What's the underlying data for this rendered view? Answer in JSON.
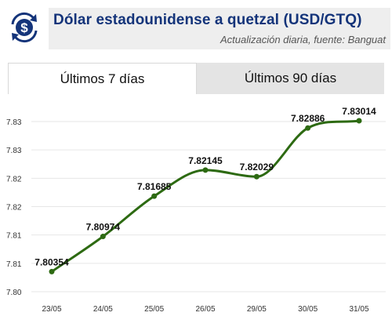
{
  "header": {
    "title": "Dólar estadounidense a quetzal (USD/GTQ)",
    "subtitle": "Actualización diaria, fuente: Banguat",
    "logo_icon": "dollar-exchange-icon",
    "logo_symbol": "$",
    "title_color": "#14347a",
    "logo_color": "#14347a"
  },
  "tabs": [
    {
      "label": "Últimos 7 días",
      "active": true
    },
    {
      "label": "Últimos 90 días",
      "active": false
    }
  ],
  "chart_data": {
    "type": "line",
    "title": "",
    "xlabel": "",
    "ylabel": "",
    "categories": [
      "23/05",
      "24/05",
      "25/05",
      "26/05",
      "29/05",
      "30/05",
      "31/05"
    ],
    "series": [
      {
        "values": [
          7.80354,
          7.80974,
          7.81685,
          7.82145,
          7.82029,
          7.82886,
          7.83014
        ],
        "color": "#2d6a12"
      }
    ],
    "data_labels": [
      "7.80354",
      "7.80974",
      "7.81685",
      "7.82145",
      "7.82029",
      "7.82886",
      "7.83014"
    ],
    "y_ticks": [
      {
        "value": 7.8,
        "label": "7.80"
      },
      {
        "value": 7.805,
        "label": "7.81"
      },
      {
        "value": 7.81,
        "label": "7.81"
      },
      {
        "value": 7.815,
        "label": "7.82"
      },
      {
        "value": 7.82,
        "label": "7.82"
      },
      {
        "value": 7.825,
        "label": "7.83"
      },
      {
        "value": 7.83,
        "label": "7.83"
      }
    ],
    "ylim": [
      7.8,
      7.83
    ],
    "grid": "horizontal",
    "legend": "none"
  }
}
